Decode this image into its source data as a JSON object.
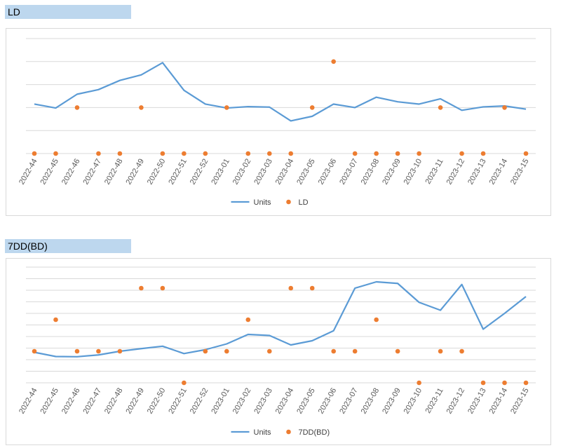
{
  "charts": {
    "chart1": {
      "header": "LD",
      "chart_data": {
        "type": "line",
        "categories": [
          "2022-44",
          "2022-45",
          "2022-46",
          "2022-47",
          "2022-48",
          "2022-49",
          "2022-50",
          "2022-51",
          "2022-52",
          "2023-01",
          "2023-02",
          "2023-03",
          "2023-04",
          "2023-05",
          "2023-06",
          "2023-07",
          "2023-08",
          "2023-09",
          "2023-10",
          "2023-11",
          "2023-12",
          "2023-13",
          "2023-14",
          "2023-15"
        ],
        "series": [
          {
            "name": "Units",
            "kind": "line",
            "color": "#5b9bd5",
            "values": [
              2.15,
              1.98,
              2.58,
              2.78,
              3.18,
              3.42,
              3.95,
              2.75,
              2.15,
              1.98,
              2.04,
              2.02,
              1.42,
              1.62,
              2.15,
              2.0,
              2.45,
              2.25,
              2.15,
              2.38,
              1.88,
              2.03,
              2.07,
              1.93
            ]
          },
          {
            "name": "LD",
            "kind": "marker",
            "color": "#ed7d31",
            "values": [
              0,
              0,
              2,
              0,
              0,
              2,
              0,
              0,
              0,
              2,
              0,
              0,
              0,
              2,
              4,
              0,
              0,
              0,
              0,
              2,
              0,
              0,
              2,
              0
            ]
          }
        ],
        "ylim": [
          0,
          5
        ],
        "grid": true,
        "legend": "bottom"
      }
    },
    "chart2": {
      "header": "7DD(BD)",
      "chart_data": {
        "type": "line",
        "categories": [
          "2022-44",
          "2022-45",
          "2022-46",
          "2022-47",
          "2022-48",
          "2022-49",
          "2022-50",
          "2022-51",
          "2022-52",
          "2023-01",
          "2023-02",
          "2023-03",
          "2023-04",
          "2023-05",
          "2023-06",
          "2023-07",
          "2023-08",
          "2023-09",
          "2023-10",
          "2023-11",
          "2023-12",
          "2023-13",
          "2023-14",
          "2023-15"
        ],
        "series": [
          {
            "name": "Units",
            "kind": "line",
            "color": "#5b9bd5",
            "values": [
              2.9,
              2.5,
              2.48,
              2.65,
              3.0,
              3.25,
              3.48,
              2.78,
              3.15,
              3.7,
              4.6,
              4.5,
              3.6,
              4.0,
              4.95,
              9.0,
              9.6,
              9.45,
              7.65,
              6.9,
              9.35,
              5.1,
              6.6,
              8.2
            ]
          },
          {
            "name": "7DD(BD)",
            "kind": "marker",
            "color": "#ed7d31",
            "values": [
              3,
              6,
              3,
              3,
              3,
              9,
              9,
              0,
              3,
              3,
              6,
              3,
              9,
              9,
              3,
              3,
              6,
              3,
              0,
              3,
              3,
              0,
              0,
              0
            ]
          }
        ],
        "ylim": [
          0,
          11
        ],
        "grid": true,
        "legend": "bottom"
      }
    }
  }
}
